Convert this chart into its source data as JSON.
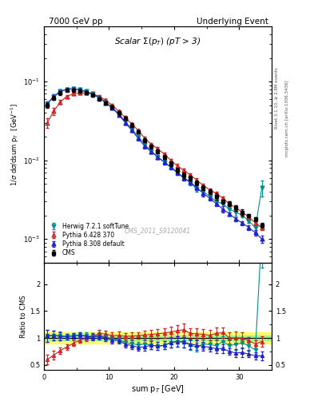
{
  "title_left": "7000 GeV pp",
  "title_right": "Underlying Event",
  "plot_title": "Scalar $\\Sigma(p_T)$ (pT > 3)",
  "xlabel": "sum p$_T$ [GeV]",
  "ylabel": "1/σ dσ/dsum p$_T$  [GeV$^{-1}$]",
  "ylabel_ratio": "Ratio to CMS",
  "right_label_top": "Rivet 3.1.10, ≥ 2.8M events",
  "right_label_bottom": "mcplots.cern.ch [arXiv:1306.3436]",
  "watermark": "CMS_2011_S9120041",
  "cms_x": [
    0.5,
    1.5,
    2.5,
    3.5,
    4.5,
    5.5,
    6.5,
    7.5,
    8.5,
    9.5,
    10.5,
    11.5,
    12.5,
    13.5,
    14.5,
    15.5,
    16.5,
    17.5,
    18.5,
    19.5,
    20.5,
    21.5,
    22.5,
    23.5,
    24.5,
    25.5,
    26.5,
    27.5,
    28.5,
    29.5,
    30.5,
    31.5,
    32.5,
    33.5
  ],
  "cms_y": [
    0.05,
    0.062,
    0.072,
    0.078,
    0.078,
    0.075,
    0.072,
    0.068,
    0.06,
    0.054,
    0.048,
    0.04,
    0.034,
    0.028,
    0.023,
    0.018,
    0.015,
    0.013,
    0.011,
    0.009,
    0.0075,
    0.0065,
    0.006,
    0.0052,
    0.0045,
    0.004,
    0.0035,
    0.003,
    0.0028,
    0.0025,
    0.0022,
    0.002,
    0.0018,
    0.0015
  ],
  "cms_yerr": [
    0.004,
    0.004,
    0.004,
    0.003,
    0.003,
    0.003,
    0.003,
    0.003,
    0.003,
    0.002,
    0.002,
    0.002,
    0.0015,
    0.0015,
    0.001,
    0.001,
    0.001,
    0.0008,
    0.0007,
    0.0006,
    0.0005,
    0.0005,
    0.0004,
    0.0004,
    0.0003,
    0.0003,
    0.0003,
    0.0002,
    0.0002,
    0.0002,
    0.0002,
    0.0001,
    0.0001,
    0.0001
  ],
  "herwig_x": [
    0.5,
    1.5,
    2.5,
    3.5,
    4.5,
    5.5,
    6.5,
    7.5,
    8.5,
    9.5,
    10.5,
    11.5,
    12.5,
    13.5,
    14.5,
    15.5,
    16.5,
    17.5,
    18.5,
    19.5,
    20.5,
    21.5,
    22.5,
    23.5,
    24.5,
    25.5,
    26.5,
    27.5,
    28.5,
    29.5,
    30.5,
    31.5,
    32.5,
    33.5
  ],
  "herwig_y": [
    0.052,
    0.065,
    0.075,
    0.08,
    0.081,
    0.079,
    0.075,
    0.07,
    0.063,
    0.055,
    0.047,
    0.039,
    0.031,
    0.025,
    0.02,
    0.016,
    0.013,
    0.011,
    0.0095,
    0.0082,
    0.007,
    0.006,
    0.0052,
    0.0043,
    0.004,
    0.0035,
    0.003,
    0.0028,
    0.0024,
    0.0022,
    0.002,
    0.0017,
    0.0014,
    0.0045
  ],
  "herwig_yerr": [
    0.004,
    0.004,
    0.004,
    0.003,
    0.003,
    0.003,
    0.003,
    0.002,
    0.002,
    0.002,
    0.002,
    0.0015,
    0.0015,
    0.001,
    0.001,
    0.001,
    0.0008,
    0.0007,
    0.0006,
    0.0005,
    0.0005,
    0.0004,
    0.0004,
    0.0003,
    0.0003,
    0.0002,
    0.0002,
    0.0002,
    0.0002,
    0.0002,
    0.0001,
    0.0001,
    0.0001,
    0.001
  ],
  "pythia6_x": [
    0.5,
    1.5,
    2.5,
    3.5,
    4.5,
    5.5,
    6.5,
    7.5,
    8.5,
    9.5,
    10.5,
    11.5,
    12.5,
    13.5,
    14.5,
    15.5,
    16.5,
    17.5,
    18.5,
    19.5,
    20.5,
    21.5,
    22.5,
    23.5,
    24.5,
    25.5,
    26.5,
    27.5,
    28.5,
    29.5,
    30.5,
    31.5,
    32.5,
    33.5
  ],
  "pythia6_y": [
    0.03,
    0.042,
    0.055,
    0.065,
    0.07,
    0.072,
    0.072,
    0.07,
    0.065,
    0.058,
    0.05,
    0.042,
    0.035,
    0.029,
    0.024,
    0.019,
    0.016,
    0.014,
    0.012,
    0.01,
    0.0085,
    0.0075,
    0.0065,
    0.0056,
    0.0048,
    0.0042,
    0.0038,
    0.0033,
    0.0028,
    0.0025,
    0.0022,
    0.0019,
    0.0016,
    0.0014
  ],
  "pythia6_yerr": [
    0.004,
    0.004,
    0.003,
    0.003,
    0.003,
    0.003,
    0.003,
    0.002,
    0.002,
    0.002,
    0.002,
    0.0015,
    0.0015,
    0.001,
    0.001,
    0.001,
    0.0008,
    0.0007,
    0.0006,
    0.0005,
    0.0005,
    0.0004,
    0.0004,
    0.0003,
    0.0003,
    0.0002,
    0.0002,
    0.0002,
    0.0002,
    0.0002,
    0.0001,
    0.0001,
    0.0001,
    0.0001
  ],
  "pythia8_x": [
    0.5,
    1.5,
    2.5,
    3.5,
    4.5,
    5.5,
    6.5,
    7.5,
    8.5,
    9.5,
    10.5,
    11.5,
    12.5,
    13.5,
    14.5,
    15.5,
    16.5,
    17.5,
    18.5,
    19.5,
    20.5,
    21.5,
    22.5,
    23.5,
    24.5,
    25.5,
    26.5,
    27.5,
    28.5,
    29.5,
    30.5,
    31.5,
    32.5,
    33.5
  ],
  "pythia8_y": [
    0.052,
    0.065,
    0.074,
    0.08,
    0.081,
    0.079,
    0.074,
    0.069,
    0.062,
    0.054,
    0.046,
    0.038,
    0.03,
    0.024,
    0.019,
    0.015,
    0.013,
    0.011,
    0.0095,
    0.0082,
    0.007,
    0.006,
    0.0053,
    0.0045,
    0.0038,
    0.0033,
    0.0028,
    0.0024,
    0.0021,
    0.0018,
    0.0016,
    0.0014,
    0.0012,
    0.001
  ],
  "pythia8_yerr": [
    0.004,
    0.004,
    0.003,
    0.003,
    0.003,
    0.003,
    0.002,
    0.002,
    0.002,
    0.002,
    0.002,
    0.0015,
    0.0015,
    0.001,
    0.001,
    0.001,
    0.0008,
    0.0007,
    0.0006,
    0.0005,
    0.0005,
    0.0004,
    0.0004,
    0.0003,
    0.0003,
    0.0002,
    0.0002,
    0.0002,
    0.0001,
    0.0001,
    0.0001,
    0.0001,
    0.0001,
    0.0001
  ],
  "cms_color": "#000000",
  "herwig_color": "#009090",
  "pythia6_color": "#cc2222",
  "pythia8_color": "#2222cc",
  "xlim": [
    0,
    35
  ],
  "ylim_main": [
    0.0005,
    0.5
  ],
  "ylim_ratio": [
    0.4,
    2.4
  ],
  "ratio_yticks": [
    0.5,
    1.0,
    1.5,
    2.0
  ],
  "band_yellow": 0.1,
  "band_green": 0.05
}
